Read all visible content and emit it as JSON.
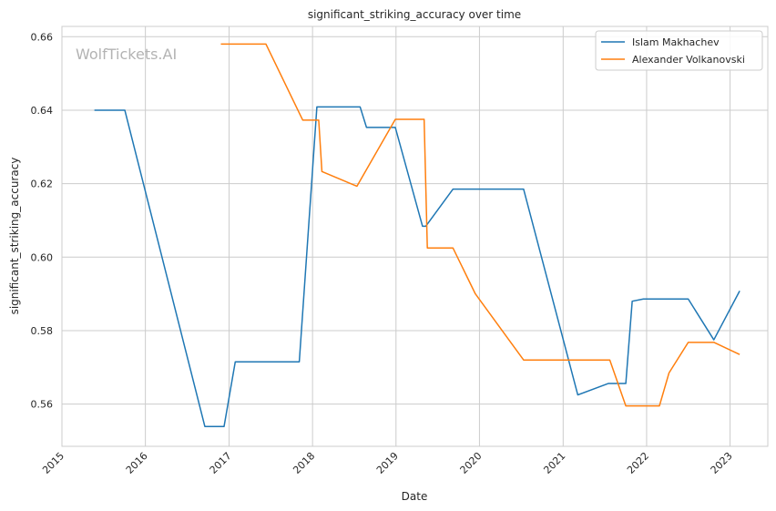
{
  "watermark": "WolfTickets.AI",
  "colors": {
    "series_1": "#1f77b4",
    "series_2": "#ff7f0e",
    "grid": "#cccccc",
    "frame": "#cccccc",
    "watermark": "#b3b3b3"
  },
  "chart_data": {
    "type": "line",
    "title": "significant_striking_accuracy over time",
    "xlabel": "Date",
    "ylabel": "significant_striking_accuracy",
    "x_scale": "date",
    "xlim": [
      "2015-01-01",
      "2023-06-15"
    ],
    "ylim": [
      0.5485,
      0.6628
    ],
    "x_ticks": [
      "2015-01-01",
      "2016-01-01",
      "2017-01-01",
      "2018-01-01",
      "2019-01-01",
      "2020-01-01",
      "2021-01-01",
      "2022-01-01",
      "2023-01-01"
    ],
    "x_tick_labels": [
      "2015",
      "2016",
      "2017",
      "2018",
      "2019",
      "2020",
      "2021",
      "2022",
      "2023"
    ],
    "y_ticks": [
      0.56,
      0.58,
      0.6,
      0.62,
      0.64,
      0.66
    ],
    "y_tick_labels": [
      "0.56",
      "0.58",
      "0.60",
      "0.62",
      "0.64",
      "0.66"
    ],
    "grid": true,
    "legend_position": "top-right",
    "series": [
      {
        "name": "Islam Makhachev",
        "points": [
          [
            "2015-05-23",
            0.64
          ],
          [
            "2015-10-03",
            0.64
          ],
          [
            "2016-09-17",
            0.5539
          ],
          [
            "2016-12-10",
            0.5539
          ],
          [
            "2017-01-28",
            0.5715
          ],
          [
            "2017-11-04",
            0.5715
          ],
          [
            "2018-01-20",
            0.6409
          ],
          [
            "2018-07-28",
            0.6409
          ],
          [
            "2018-08-25",
            0.6353
          ],
          [
            "2018-12-29",
            0.6353
          ],
          [
            "2019-04-27",
            0.6084
          ],
          [
            "2019-05-11",
            0.6084
          ],
          [
            "2019-09-07",
            0.6185
          ],
          [
            "2020-07-12",
            0.6185
          ],
          [
            "2021-03-06",
            0.5625
          ],
          [
            "2021-07-17",
            0.5656
          ],
          [
            "2021-10-02",
            0.5656
          ],
          [
            "2021-10-30",
            0.588
          ],
          [
            "2021-12-18",
            0.5886
          ],
          [
            "2022-07-02",
            0.5886
          ],
          [
            "2022-10-22",
            0.5775
          ],
          [
            "2023-02-12",
            0.5908
          ]
        ]
      },
      {
        "name": "Alexander Volkanovski",
        "points": [
          [
            "2016-11-26",
            0.658
          ],
          [
            "2017-06-11",
            0.658
          ],
          [
            "2017-11-19",
            0.6373
          ],
          [
            "2018-01-28",
            0.6373
          ],
          [
            "2018-02-11",
            0.6233
          ],
          [
            "2018-07-14",
            0.6193
          ],
          [
            "2018-12-29",
            0.6375
          ],
          [
            "2019-05-04",
            0.6375
          ],
          [
            "2019-05-18",
            0.6025
          ],
          [
            "2019-09-07",
            0.6025
          ],
          [
            "2019-12-14",
            0.59
          ],
          [
            "2020-07-12",
            0.572
          ],
          [
            "2021-07-24",
            0.572
          ],
          [
            "2021-10-02",
            0.5595
          ],
          [
            "2022-02-26",
            0.5595
          ],
          [
            "2022-04-09",
            0.5685
          ],
          [
            "2022-07-02",
            0.5768
          ],
          [
            "2022-10-22",
            0.5768
          ],
          [
            "2023-02-12",
            0.5735
          ]
        ]
      }
    ]
  }
}
